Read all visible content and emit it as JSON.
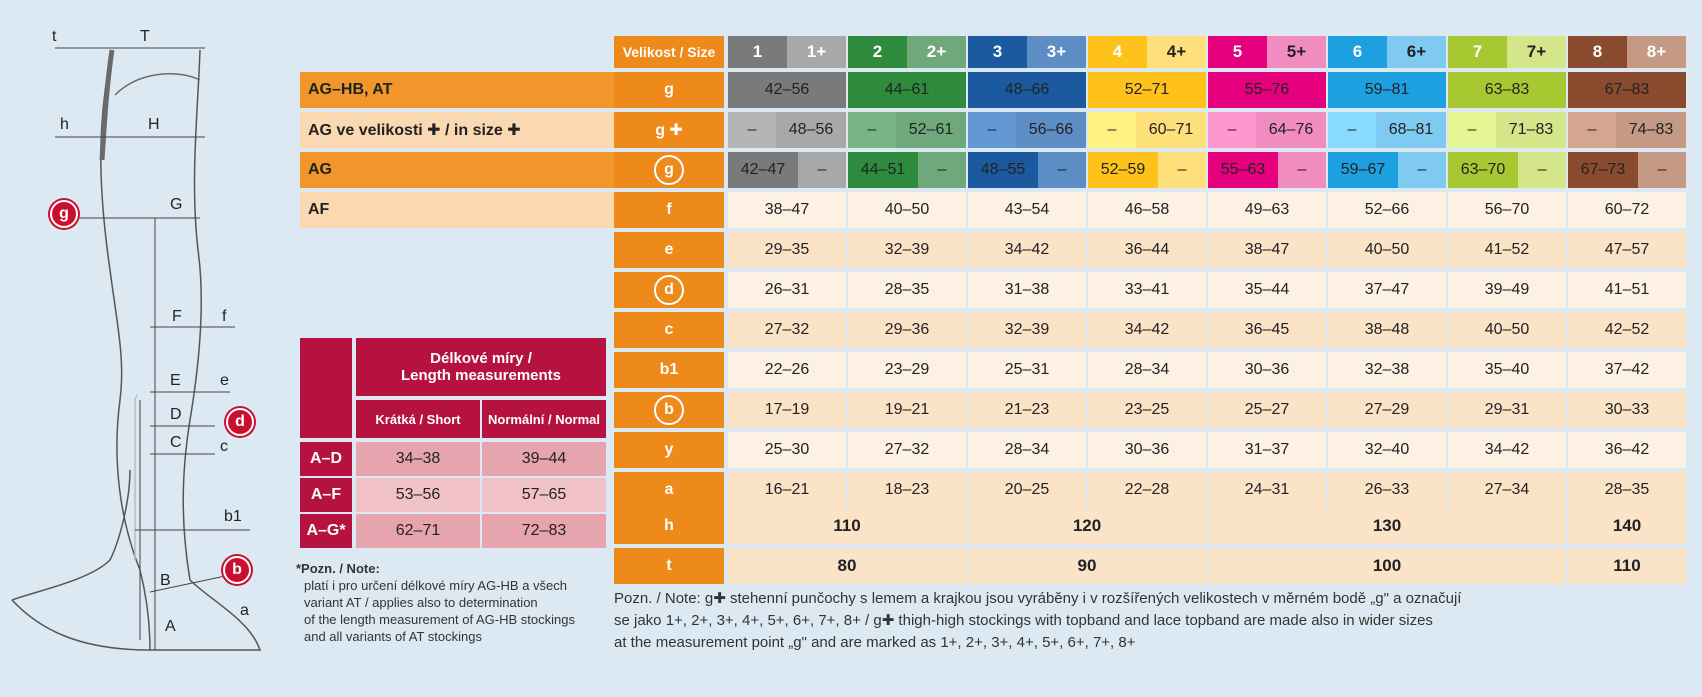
{
  "header_label": "Velikost / Size",
  "sizes": [
    {
      "a": "1",
      "b": "1+",
      "ca": "#7a7a7a",
      "cb": "#a8a8a8",
      "ta": "#fff",
      "tb": "#fff"
    },
    {
      "a": "2",
      "b": "2+",
      "ca": "#2e8b3e",
      "cb": "#6fa87a",
      "ta": "#fff",
      "tb": "#fff"
    },
    {
      "a": "3",
      "b": "3+",
      "ca": "#1c5aa0",
      "cb": "#5c8dc4",
      "ta": "#fff",
      "tb": "#fff"
    },
    {
      "a": "4",
      "b": "4+",
      "ca": "#ffc21a",
      "cb": "#fde07a",
      "ta": "#fff",
      "tb": "#222"
    },
    {
      "a": "5",
      "b": "5+",
      "ca": "#e6007e",
      "cb": "#f08cc0",
      "ta": "#fff",
      "tb": "#222"
    },
    {
      "a": "6",
      "b": "6+",
      "ca": "#1da0e0",
      "cb": "#7fcaf0",
      "ta": "#fff",
      "tb": "#222"
    },
    {
      "a": "7",
      "b": "7+",
      "ca": "#a8c832",
      "cb": "#d4e58a",
      "ta": "#fff",
      "tb": "#222"
    },
    {
      "a": "8",
      "b": "8+",
      "ca": "#8a4a2e",
      "cb": "#c49a84",
      "ta": "#fff",
      "tb": "#fff"
    }
  ],
  "rows": {
    "g": {
      "cat": "AG–HB, AT",
      "label": "g",
      "vals": [
        "42–56",
        "44–61",
        "48–66",
        "52–71",
        "55–76",
        "59–81",
        "63–83",
        "67–83"
      ]
    },
    "gplus": {
      "cat": "AG ve velikosti ✚ / in size ✚",
      "label": "g ✚",
      "vals": [
        [
          "–",
          "48–56"
        ],
        [
          "–",
          "52–61"
        ],
        [
          "–",
          "56–66"
        ],
        [
          "–",
          "60–71"
        ],
        [
          "–",
          "64–76"
        ],
        [
          "–",
          "68–81"
        ],
        [
          "–",
          "71–83"
        ],
        [
          "–",
          "74–83"
        ]
      ]
    },
    "gc": {
      "cat": "AG",
      "label": "g",
      "vals": [
        [
          "42–47",
          "–"
        ],
        [
          "44–51",
          "–"
        ],
        [
          "48–55",
          "–"
        ],
        [
          "52–59",
          "–"
        ],
        [
          "55–63",
          "–"
        ],
        [
          "59–67",
          "–"
        ],
        [
          "63–70",
          "–"
        ],
        [
          "67–73",
          "–"
        ]
      ]
    },
    "f": {
      "cat": "AF",
      "label": "f",
      "vals": [
        "38–47",
        "40–50",
        "43–54",
        "46–58",
        "49–63",
        "52–66",
        "56–70",
        "60–72"
      ]
    },
    "e": {
      "label": "e",
      "vals": [
        "29–35",
        "32–39",
        "34–42",
        "36–44",
        "38–47",
        "40–50",
        "41–52",
        "47–57"
      ]
    },
    "d": {
      "label": "d",
      "vals": [
        "26–31",
        "28–35",
        "31–38",
        "33–41",
        "35–44",
        "37–47",
        "39–49",
        "41–51"
      ]
    },
    "c": {
      "label": "c",
      "vals": [
        "27–32",
        "29–36",
        "32–39",
        "34–42",
        "36–45",
        "38–48",
        "40–50",
        "42–52"
      ]
    },
    "b1": {
      "label": "b1",
      "vals": [
        "22–26",
        "23–29",
        "25–31",
        "28–34",
        "30–36",
        "32–38",
        "35–40",
        "37–42"
      ]
    },
    "b": {
      "label": "b",
      "vals": [
        "17–19",
        "19–21",
        "21–23",
        "23–25",
        "25–27",
        "27–29",
        "29–31",
        "30–33"
      ]
    },
    "y": {
      "label": "y",
      "vals": [
        "25–30",
        "27–32",
        "28–34",
        "30–36",
        "31–37",
        "32–40",
        "34–42",
        "36–42"
      ]
    },
    "a": {
      "label": "a",
      "vals": [
        "16–21",
        "18–23",
        "20–25",
        "22–28",
        "24–31",
        "26–33",
        "27–34",
        "28–35"
      ]
    },
    "h": {
      "label": "h",
      "vals": [
        "110",
        "120",
        "130",
        "140"
      ]
    },
    "t": {
      "label": "t",
      "vals": [
        "80",
        "90",
        "100",
        "110"
      ]
    }
  },
  "length": {
    "title1": "Délkové míry /",
    "title2": "Length measurements",
    "short": "Krátká / Short",
    "normal": "Normální / Normal",
    "rows": [
      [
        "A–D",
        "34–38",
        "39–44"
      ],
      [
        "A–F",
        "53–56",
        "57–65"
      ],
      [
        "A–G*",
        "62–71",
        "72–83"
      ]
    ]
  },
  "note_title": "*Pozn. / Note:",
  "note_lines": [
    "platí i pro určení délkové míry AG-HB a všech",
    "variant AT / applies also to determination",
    "of the length measurement of AG-HB stockings",
    "and all variants of AT stockings"
  ],
  "footer": {
    "l1": "Pozn. / Note: g✚ stehenní punčochy s lemem a krajkou jsou vyráběny i v rozšířených velikostech v měrném bodě „g\" a označují",
    "l2": "se jako 1+, 2+, 3+, 4+, 5+, 6+, 7+, 8+ / g✚ thigh-high stockings with topband and lace topband are made also in wider sizes",
    "l3": "at the measurement point „g\" and are marked as 1+, 2+, 3+, 4+, 5+, 6+, 7+, 8+"
  },
  "leg_labels": {
    "t": "t",
    "T": "T",
    "h": "h",
    "H": "H",
    "G": "G",
    "g": "g",
    "F": "F",
    "f": "f",
    "E": "E",
    "e": "e",
    "D": "D",
    "d": "d",
    "C": "C",
    "c": "c",
    "b1": "b1",
    "B": "B",
    "b": "b",
    "A": "A",
    "a": "a"
  }
}
